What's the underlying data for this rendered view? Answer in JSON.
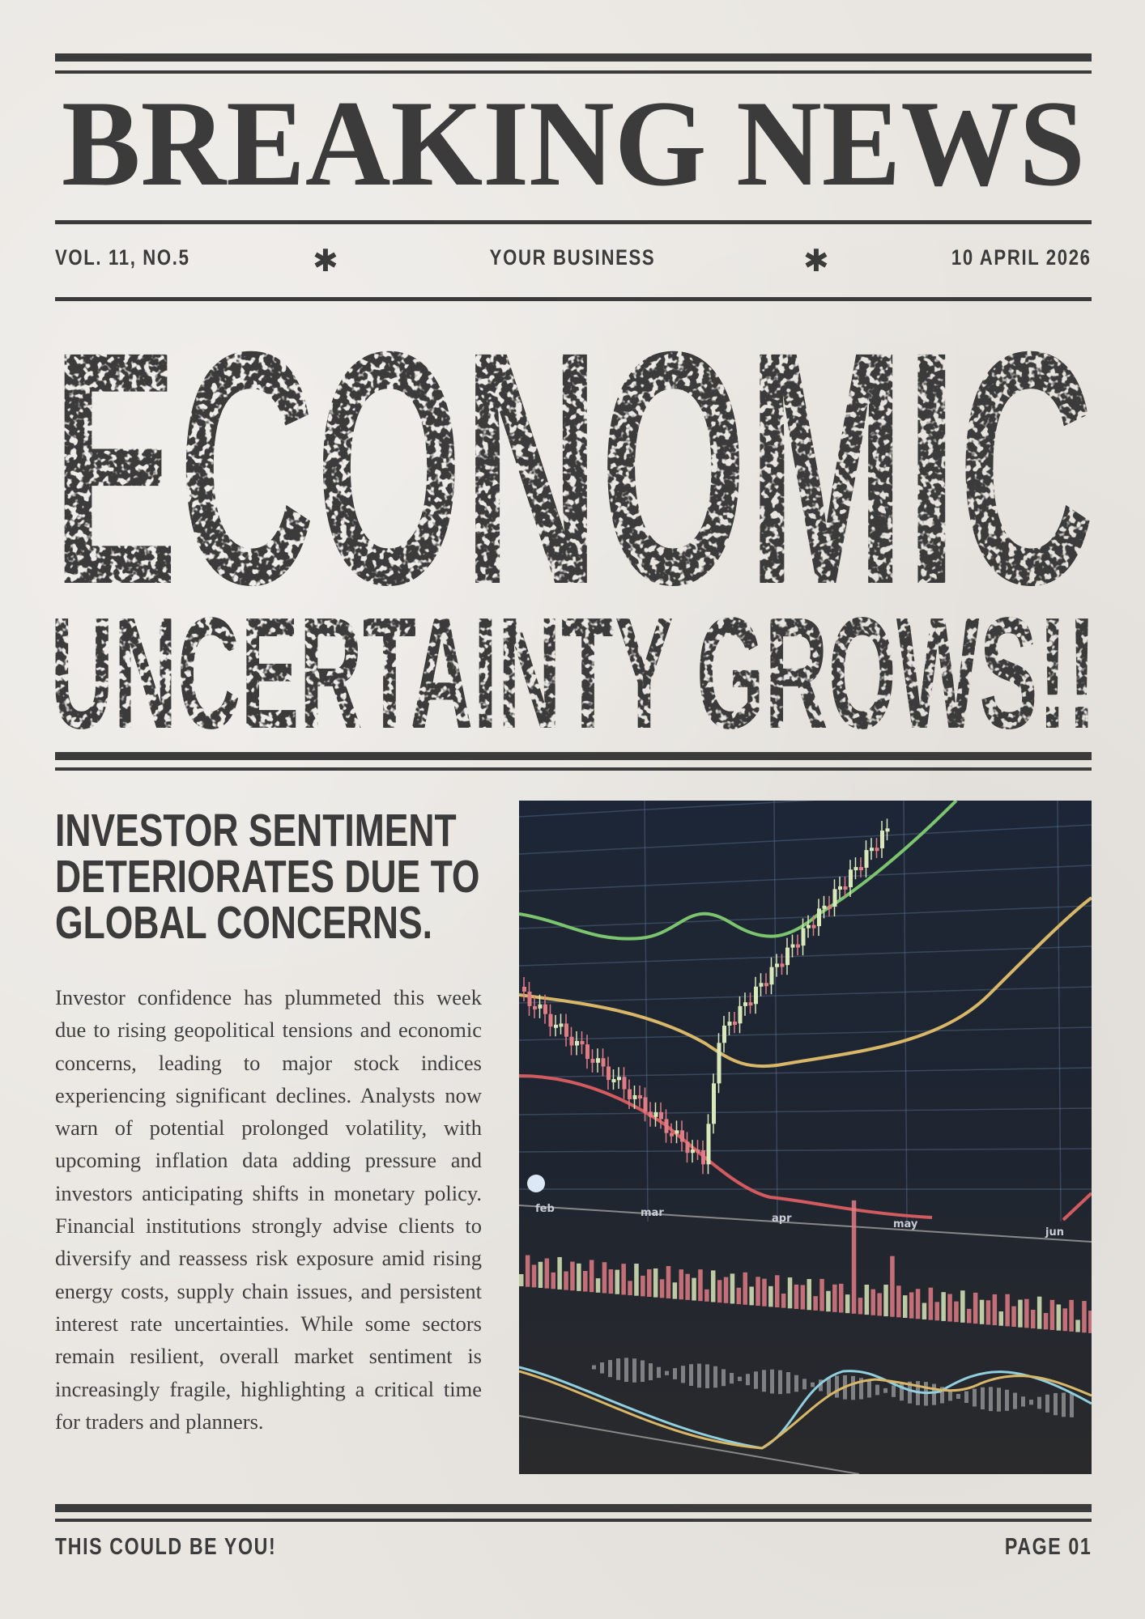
{
  "masthead": {
    "title": "BREAKING NEWS"
  },
  "meta": {
    "volume": "VOL. 11, NO.5",
    "section": "YOUR BUSINESS",
    "date": "10 APRIL 2026",
    "separator_icon": "asterisk-icon"
  },
  "headline": {
    "line1": "ECONOMIC",
    "line2": "UNCERTAINTY GROWS!!"
  },
  "article": {
    "subheadline": [
      "INVESTOR SENTIMENT",
      "DETERIORATES DUE TO",
      "GLOBAL CONCERNS."
    ],
    "body": "Investor confidence has plummeted this week due to rising geopolitical tensions and economic concerns, leading to major stock indices experiencing significant declines. Analysts now warn of potential prolonged volatility, with upcoming inflation data adding pressure and investors anticipating shifts in monetary policy. Financial institutions strongly advise clients to diversify and reassess risk exposure amid rising energy costs, supply chain issues, and persistent interest rate uncertainties. While some sectors remain resilient, overall market sentiment is increasingly fragile, highlighting a critical time for traders and planners.",
    "photo": {
      "month_labels": [
        "feb",
        "mar",
        "apr",
        "may",
        "jun"
      ]
    }
  },
  "footer": {
    "tagline": "THIS COULD BE YOU!",
    "page": "PAGE 01"
  },
  "colors": {
    "ink": "#3b3b3b",
    "paper": "#e9e6e1",
    "screen": "#1f2530"
  }
}
